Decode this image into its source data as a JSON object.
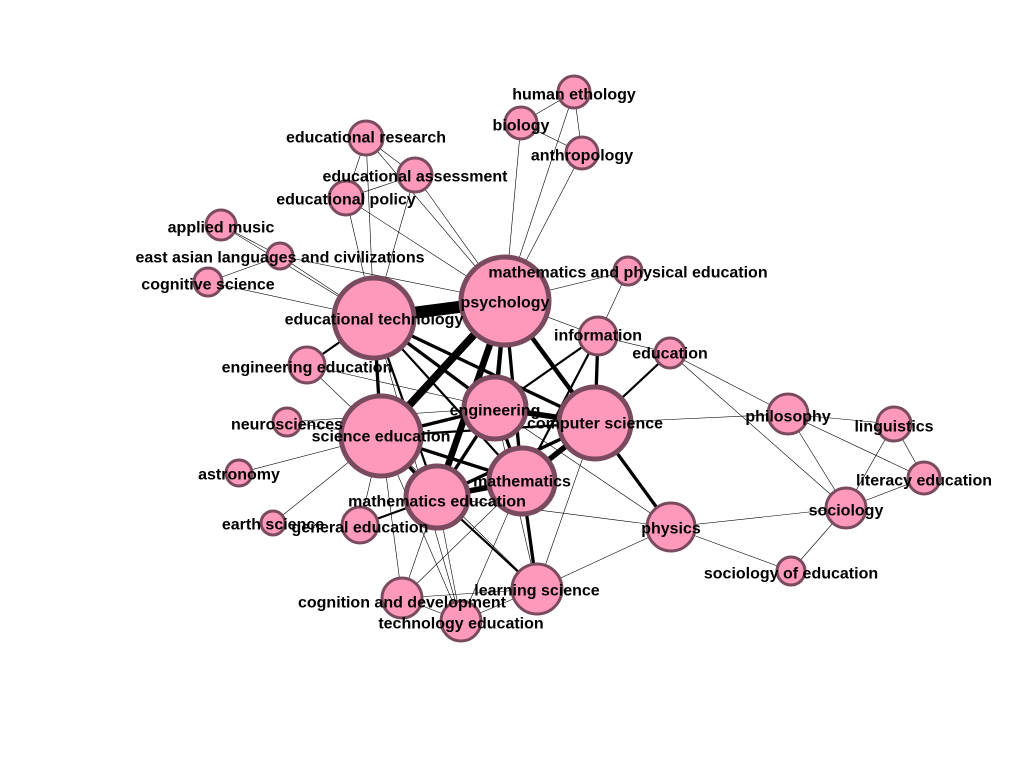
{
  "colors": {
    "node_fill": "#ff99bb",
    "node_stroke": "#7a4a5e",
    "edge": "#000000",
    "label": "#000000"
  },
  "nodes": [
    {
      "id": "human_ethology",
      "label": "human ethology"
    },
    {
      "id": "biology",
      "label": "biology"
    },
    {
      "id": "anthropology",
      "label": "anthropology"
    },
    {
      "id": "educational_research",
      "label": "educational research"
    },
    {
      "id": "educational_assessment",
      "label": "educational assessment"
    },
    {
      "id": "educational_policy",
      "label": "educational policy"
    },
    {
      "id": "applied_music",
      "label": "applied music"
    },
    {
      "id": "east_asian",
      "label": "east asian languages and civilizations"
    },
    {
      "id": "cognitive_science",
      "label": "cognitive science"
    },
    {
      "id": "math_phys_ed",
      "label": "mathematics and physical education"
    },
    {
      "id": "psychology",
      "label": "psychology"
    },
    {
      "id": "educational_technology",
      "label": "educational technology"
    },
    {
      "id": "information",
      "label": "information"
    },
    {
      "id": "education",
      "label": "education"
    },
    {
      "id": "engineering_education",
      "label": "engineering education"
    },
    {
      "id": "engineering",
      "label": "engineering"
    },
    {
      "id": "computer_science",
      "label": "computer science"
    },
    {
      "id": "neurosciences",
      "label": "neurosciences"
    },
    {
      "id": "science_education",
      "label": "science education"
    },
    {
      "id": "philosophy",
      "label": "philosophy"
    },
    {
      "id": "linguistics",
      "label": "linguistics"
    },
    {
      "id": "astronomy",
      "label": "astronomy"
    },
    {
      "id": "mathematics",
      "label": "mathematics"
    },
    {
      "id": "literacy_education",
      "label": "literacy education"
    },
    {
      "id": "mathematics_education",
      "label": "mathematics education"
    },
    {
      "id": "earth_science",
      "label": "earth science"
    },
    {
      "id": "general_education",
      "label": "general education"
    },
    {
      "id": "physics",
      "label": "physics"
    },
    {
      "id": "sociology",
      "label": "sociology"
    },
    {
      "id": "sociology_of_education",
      "label": "sociology of education"
    },
    {
      "id": "learning_science",
      "label": "learning science"
    },
    {
      "id": "cognition_development",
      "label": "cognition and development"
    },
    {
      "id": "technology_education",
      "label": "technology education"
    }
  ],
  "edges": [
    {
      "s": "educational_technology",
      "t": "psychology",
      "w": 12
    },
    {
      "s": "psychology",
      "t": "science_education",
      "w": 7
    },
    {
      "s": "psychology",
      "t": "mathematics_education",
      "w": 6
    },
    {
      "s": "psychology",
      "t": "engineering",
      "w": 4
    },
    {
      "s": "psychology",
      "t": "computer_science",
      "w": 4
    },
    {
      "s": "psychology",
      "t": "mathematics",
      "w": 3
    },
    {
      "s": "educational_technology",
      "t": "science_education",
      "w": 3
    },
    {
      "s": "educational_technology",
      "t": "engineering",
      "w": 3
    },
    {
      "s": "educational_technology",
      "t": "computer_science",
      "w": 3
    },
    {
      "s": "educational_technology",
      "t": "mathematics",
      "w": 2
    },
    {
      "s": "educational_technology",
      "t": "mathematics_education",
      "w": 2
    },
    {
      "s": "educational_technology",
      "t": "engineering_education",
      "w": 2
    },
    {
      "s": "science_education",
      "t": "engineering",
      "w": 3
    },
    {
      "s": "science_education",
      "t": "mathematics_education",
      "w": 3
    },
    {
      "s": "science_education",
      "t": "mathematics",
      "w": 3
    },
    {
      "s": "science_education",
      "t": "computer_science",
      "w": 2
    },
    {
      "s": "engineering",
      "t": "computer_science",
      "w": 5
    },
    {
      "s": "engineering",
      "t": "mathematics",
      "w": 3
    },
    {
      "s": "engineering",
      "t": "mathematics_education",
      "w": 3
    },
    {
      "s": "computer_science",
      "t": "mathematics",
      "w": 5
    },
    {
      "s": "computer_science",
      "t": "mathematics_education",
      "w": 3
    },
    {
      "s": "computer_science",
      "t": "information",
      "w": 3
    },
    {
      "s": "computer_science",
      "t": "physics",
      "w": 3
    },
    {
      "s": "computer_science",
      "t": "education",
      "w": 2
    },
    {
      "s": "mathematics",
      "t": "mathematics_education",
      "w": 5
    },
    {
      "s": "mathematics",
      "t": "learning_science",
      "w": 3
    },
    {
      "s": "mathematics_education",
      "t": "learning_science",
      "w": 2
    },
    {
      "s": "mathematics_education",
      "t": "general_education",
      "w": 2
    },
    {
      "s": "mathematics",
      "t": "information",
      "w": 2
    },
    {
      "s": "engineering",
      "t": "information",
      "w": 2
    },
    {
      "s": "science_education",
      "t": "neurosciences",
      "w": 1
    },
    {
      "s": "science_education",
      "t": "astronomy",
      "w": 1
    },
    {
      "s": "science_education",
      "t": "earth_science",
      "w": 1
    },
    {
      "s": "science_education",
      "t": "general_education",
      "w": 1
    },
    {
      "s": "educational_technology",
      "t": "educational_policy",
      "w": 1
    },
    {
      "s": "educational_technology",
      "t": "educational_research",
      "w": 1
    },
    {
      "s": "educational_technology",
      "t": "educational_assessment",
      "w": 1
    },
    {
      "s": "educational_technology",
      "t": "applied_music",
      "w": 1
    },
    {
      "s": "educational_technology",
      "t": "east_asian",
      "w": 1
    },
    {
      "s": "educational_technology",
      "t": "cognitive_science",
      "w": 1
    },
    {
      "s": "psychology",
      "t": "human_ethology",
      "w": 1
    },
    {
      "s": "psychology",
      "t": "biology",
      "w": 1
    },
    {
      "s": "psychology",
      "t": "anthropology",
      "w": 1
    },
    {
      "s": "psychology",
      "t": "math_phys_ed",
      "w": 1
    },
    {
      "s": "psychology",
      "t": "educational_policy",
      "w": 1
    },
    {
      "s": "psychology",
      "t": "educational_assessment",
      "w": 1
    },
    {
      "s": "psychology",
      "t": "educational_research",
      "w": 1
    },
    {
      "s": "psychology",
      "t": "east_asian",
      "w": 1
    },
    {
      "s": "psychology",
      "t": "information",
      "w": 1
    },
    {
      "s": "human_ethology",
      "t": "biology",
      "w": 1
    },
    {
      "s": "human_ethology",
      "t": "anthropology",
      "w": 1
    },
    {
      "s": "biology",
      "t": "anthropology",
      "w": 1
    },
    {
      "s": "educational_research",
      "t": "educational_assessment",
      "w": 1
    },
    {
      "s": "educational_research",
      "t": "educational_policy",
      "w": 1
    },
    {
      "s": "educational_assessment",
      "t": "educational_policy",
      "w": 1
    },
    {
      "s": "applied_music",
      "t": "east_asian",
      "w": 1
    },
    {
      "s": "east_asian",
      "t": "cognitive_science",
      "w": 1
    },
    {
      "s": "math_phys_ed",
      "t": "information",
      "w": 1
    },
    {
      "s": "information",
      "t": "education",
      "w": 1
    },
    {
      "s": "education",
      "t": "philosophy",
      "w": 1
    },
    {
      "s": "education",
      "t": "sociology",
      "w": 1
    },
    {
      "s": "computer_science",
      "t": "philosophy",
      "w": 1
    },
    {
      "s": "physics",
      "t": "sociology",
      "w": 1
    },
    {
      "s": "physics",
      "t": "sociology_of_education",
      "w": 1
    },
    {
      "s": "physics",
      "t": "learning_science",
      "w": 1
    },
    {
      "s": "physics",
      "t": "mathematics_education",
      "w": 1
    },
    {
      "s": "physics",
      "t": "engineering",
      "w": 1
    },
    {
      "s": "philosophy",
      "t": "linguistics",
      "w": 1
    },
    {
      "s": "philosophy",
      "t": "sociology",
      "w": 1
    },
    {
      "s": "philosophy",
      "t": "literacy_education",
      "w": 1
    },
    {
      "s": "linguistics",
      "t": "literacy_education",
      "w": 1
    },
    {
      "s": "linguistics",
      "t": "sociology",
      "w": 1
    },
    {
      "s": "literacy_education",
      "t": "sociology",
      "w": 1
    },
    {
      "s": "sociology",
      "t": "sociology_of_education",
      "w": 1
    },
    {
      "s": "learning_science",
      "t": "cognition_development",
      "w": 1
    },
    {
      "s": "learning_science",
      "t": "technology_education",
      "w": 1
    },
    {
      "s": "cognition_development",
      "t": "technology_education",
      "w": 1
    },
    {
      "s": "mathematics_education",
      "t": "cognition_development",
      "w": 1
    },
    {
      "s": "mathematics_education",
      "t": "technology_education",
      "w": 1
    },
    {
      "s": "science_education",
      "t": "cognition_development",
      "w": 1
    },
    {
      "s": "science_education",
      "t": "technology_education",
      "w": 1
    },
    {
      "s": "science_education",
      "t": "learning_science",
      "w": 1
    },
    {
      "s": "engineering_education",
      "t": "science_education",
      "w": 1
    },
    {
      "s": "engineering_education",
      "t": "engineering",
      "w": 1
    },
    {
      "s": "neurosciences",
      "t": "engineering",
      "w": 1
    },
    {
      "s": "computer_science",
      "t": "learning_science",
      "w": 1
    },
    {
      "s": "mathematics",
      "t": "cognition_development",
      "w": 1
    },
    {
      "s": "mathematics",
      "t": "technology_education",
      "w": 1
    },
    {
      "s": "engineering",
      "t": "learning_science",
      "w": 1
    },
    {
      "s": "educational_technology",
      "t": "technology_education",
      "w": 1
    }
  ]
}
